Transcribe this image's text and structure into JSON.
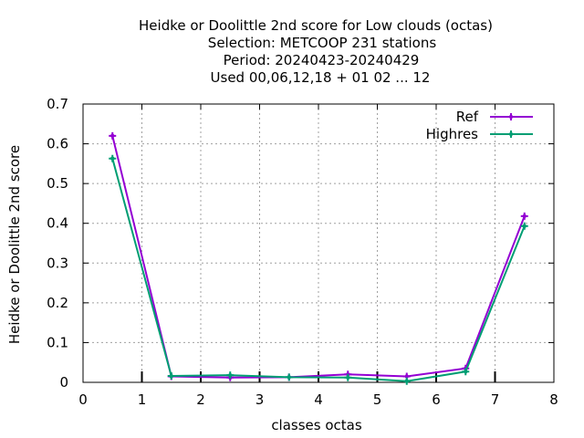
{
  "chart_data": {
    "type": "line",
    "title_lines": [
      "Heidke or Doolittle 2nd score  for Low clouds (octas)",
      "Selection: METCOOP    231 stations",
      "Period: 20240423-20240429",
      "Used  00,06,12,18 + 01 02 ... 12"
    ],
    "xlabel": "classes octas",
    "ylabel": "Heidke or Doolittle 2nd score",
    "xlim": [
      0,
      8
    ],
    "ylim": [
      0,
      0.7
    ],
    "x_ticks": [
      "0",
      "1",
      "2",
      "3",
      "4",
      "5",
      "6",
      "7",
      "8"
    ],
    "y_ticks": [
      "0",
      "0.1",
      "0.2",
      "0.3",
      "0.4",
      "0.5",
      "0.6",
      "0.7"
    ],
    "grid": true,
    "legend_position": "top-right",
    "x": [
      0.5,
      1.5,
      2.5,
      3.5,
      4.5,
      5.5,
      6.5,
      7.5
    ],
    "series": [
      {
        "name": "Ref",
        "color": "#9400d3",
        "values": [
          0.62,
          0.015,
          0.012,
          0.013,
          0.02,
          0.015,
          0.035,
          0.418
        ]
      },
      {
        "name": "Highres",
        "color": "#009e73",
        "values": [
          0.563,
          0.016,
          0.018,
          0.013,
          0.012,
          0.003,
          0.027,
          0.393
        ]
      }
    ],
    "marker": "plus-icon"
  }
}
